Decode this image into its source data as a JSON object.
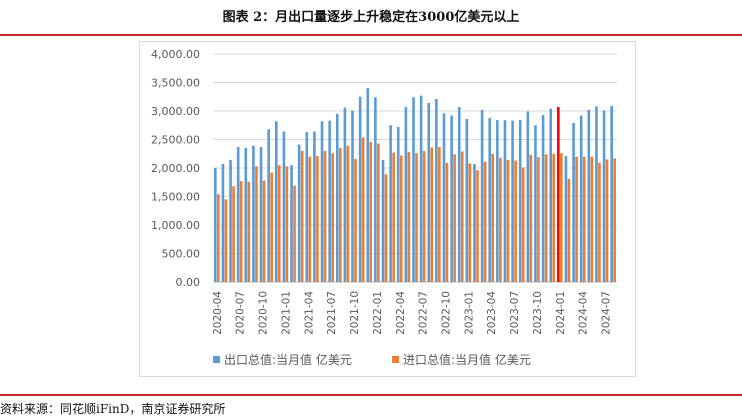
{
  "title": "图表 2：月出口量逐步上升稳定在3000亿美元以上",
  "source": "资料来源：同花顺iFinD，南京证券研究所",
  "colors": {
    "export": "#5B9BD5",
    "import": "#ED7D31",
    "highlight": "#FF0000",
    "rule": "#C0272D",
    "grid": "#D9D9D9"
  },
  "chart_data": {
    "type": "bar",
    "title": "",
    "xlabel": "",
    "ylabel": "",
    "ylim": [
      0,
      4000
    ],
    "yticks": [
      "0.00",
      "500.00",
      "1,000.00",
      "1,500.00",
      "2,000.00",
      "2,500.00",
      "3,000.00",
      "3,500.00",
      "4,000.00"
    ],
    "grid": true,
    "legend_position": "bottom",
    "highlight_category": "2024-01",
    "tick_labels": [
      "2020-04",
      "2020-07",
      "2020-10",
      "2021-01",
      "2021-04",
      "2021-07",
      "2021-10",
      "2022-01",
      "2022-04",
      "2022-07",
      "2022-10",
      "2023-01",
      "2023-04",
      "2023-07",
      "2023-10",
      "2024-01",
      "2024-04",
      "2024-07"
    ],
    "categories": [
      "2020-04",
      "2020-05",
      "2020-06",
      "2020-07",
      "2020-08",
      "2020-09",
      "2020-10",
      "2020-11",
      "2020-12",
      "2021-01",
      "2021-02",
      "2021-03",
      "2021-04",
      "2021-05",
      "2021-06",
      "2021-07",
      "2021-08",
      "2021-09",
      "2021-10",
      "2021-11",
      "2021-12",
      "2022-01",
      "2022-02",
      "2022-03",
      "2022-04",
      "2022-05",
      "2022-06",
      "2022-07",
      "2022-08",
      "2022-09",
      "2022-10",
      "2022-11",
      "2022-12",
      "2023-01",
      "2023-02",
      "2023-03",
      "2023-04",
      "2023-05",
      "2023-06",
      "2023-07",
      "2023-08",
      "2023-09",
      "2023-10",
      "2023-11",
      "2023-12",
      "2024-01",
      "2024-02",
      "2024-03",
      "2024-04",
      "2024-05",
      "2024-06",
      "2024-07",
      "2024-08"
    ],
    "series": [
      {
        "name": "出口总值:当月值 亿美元",
        "values": [
          2000,
          2070,
          2140,
          2370,
          2350,
          2390,
          2370,
          2680,
          2820,
          2640,
          2050,
          2410,
          2630,
          2640,
          2820,
          2830,
          2950,
          3060,
          3010,
          3250,
          3400,
          3240,
          2140,
          2750,
          2720,
          3070,
          3240,
          3270,
          3140,
          3210,
          2960,
          2920,
          3070,
          2860,
          2070,
          3020,
          2880,
          2840,
          2840,
          2830,
          2840,
          2990,
          2750,
          2930,
          3040,
          3070,
          2210,
          2790,
          2920,
          3020,
          3080,
          3010,
          3090
        ]
      },
      {
        "name": "进口总值:当月值 亿美元",
        "values": [
          1540,
          1450,
          1680,
          1770,
          1760,
          2030,
          1780,
          1920,
          2050,
          2030,
          1690,
          2300,
          2200,
          2210,
          2300,
          2260,
          2350,
          2390,
          2160,
          2540,
          2460,
          2430,
          1890,
          2270,
          2220,
          2280,
          2260,
          2300,
          2360,
          2370,
          2090,
          2240,
          2290,
          2080,
          1960,
          2110,
          2250,
          2180,
          2140,
          2130,
          2010,
          2230,
          2190,
          2240,
          2250,
          2260,
          1810,
          2200,
          2200,
          2200,
          2090,
          2150,
          2170
        ]
      }
    ]
  }
}
